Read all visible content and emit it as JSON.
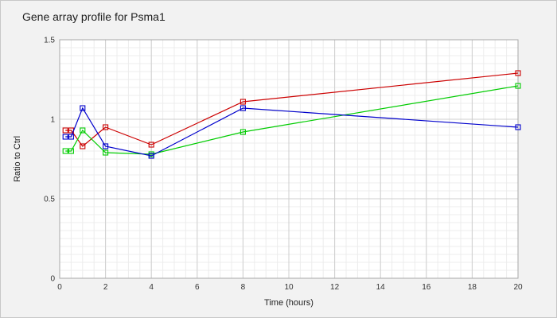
{
  "chart_data": {
    "type": "line",
    "title": "Gene array profile for Psma1",
    "xlabel": "Time (hours)",
    "ylabel": "Ratio to Ctrl",
    "xlim": [
      0,
      20
    ],
    "ylim": [
      0,
      1.5
    ],
    "xticks": [
      0,
      2,
      4,
      6,
      8,
      10,
      12,
      14,
      16,
      18,
      20
    ],
    "yticks": [
      0,
      0.5,
      1,
      1.5
    ],
    "ytick_labels": [
      "0",
      "0.5",
      "1",
      "1.5"
    ],
    "grid": true,
    "legend": "none",
    "marker": "square",
    "series": [
      {
        "color": "#cc0000",
        "x": [
          0.25,
          0.5,
          1,
          2,
          4,
          8,
          20
        ],
        "y": [
          0.93,
          0.93,
          0.83,
          0.95,
          0.84,
          1.11,
          1.29
        ]
      },
      {
        "color": "#00cc00",
        "x": [
          0.25,
          0.5,
          1,
          2,
          4,
          8,
          20
        ],
        "y": [
          0.8,
          0.8,
          0.93,
          0.79,
          0.78,
          0.92,
          1.21
        ]
      },
      {
        "color": "#0000cc",
        "x": [
          0.25,
          0.5,
          1,
          2,
          4,
          8,
          20
        ],
        "y": [
          0.89,
          0.89,
          1.07,
          0.83,
          0.77,
          1.07,
          0.95
        ]
      }
    ]
  }
}
